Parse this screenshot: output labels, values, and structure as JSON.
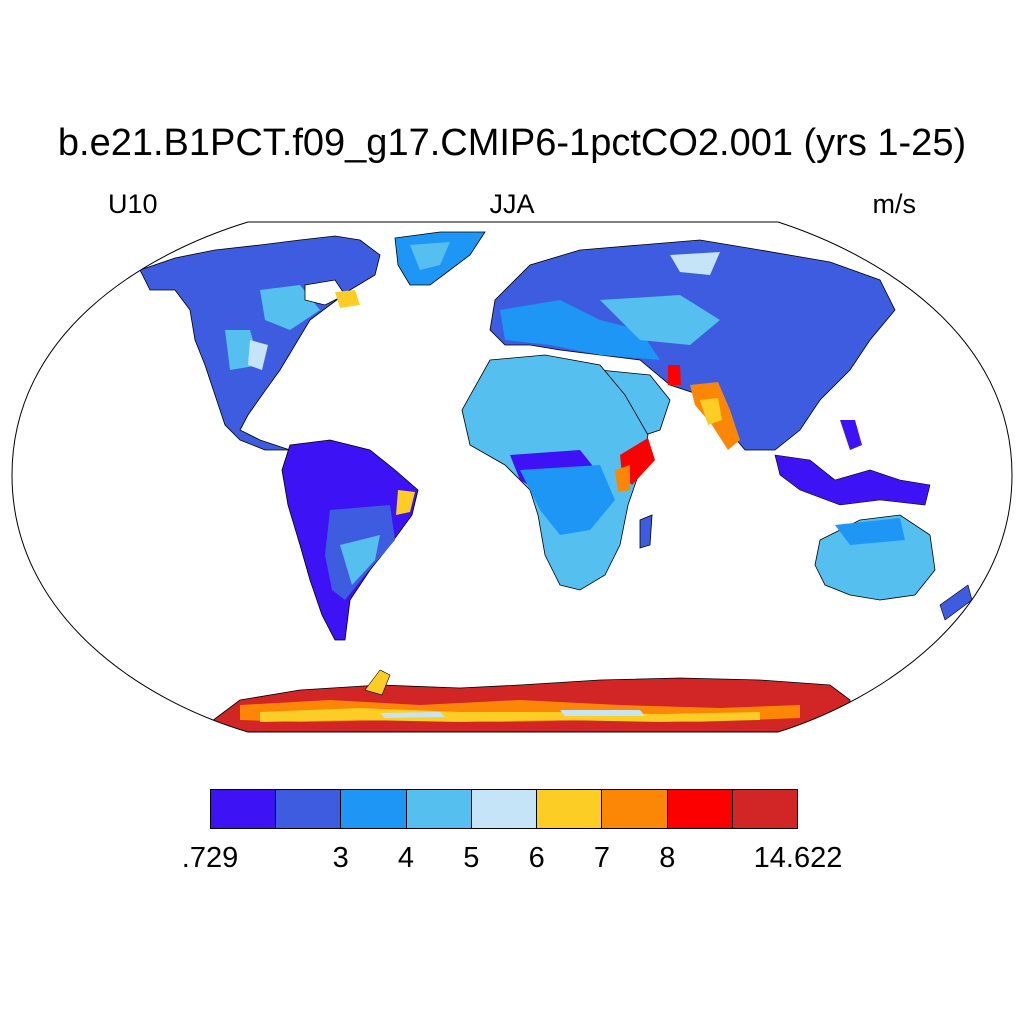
{
  "title": "b.e21.B1PCT.f09_g17.CMIP6-1pctCO2.001 (yrs 1-25)",
  "left_string": "U10",
  "center_string": "JJA",
  "right_string": "m/s",
  "colorbar": {
    "colors": [
      "#3d12f5",
      "#3d5ce0",
      "#1e96f5",
      "#55bff0",
      "#c6e4f7",
      "#fccd25",
      "#fc8605",
      "#fc0000",
      "#d22525"
    ],
    "labels": [
      ".729",
      "",
      "3",
      "4",
      "5",
      "6",
      "7",
      "8",
      "",
      "14.622"
    ]
  },
  "map": {
    "projection": "Robinson",
    "ocean_color": "#ffffff",
    "coastline_color": "#000000"
  }
}
